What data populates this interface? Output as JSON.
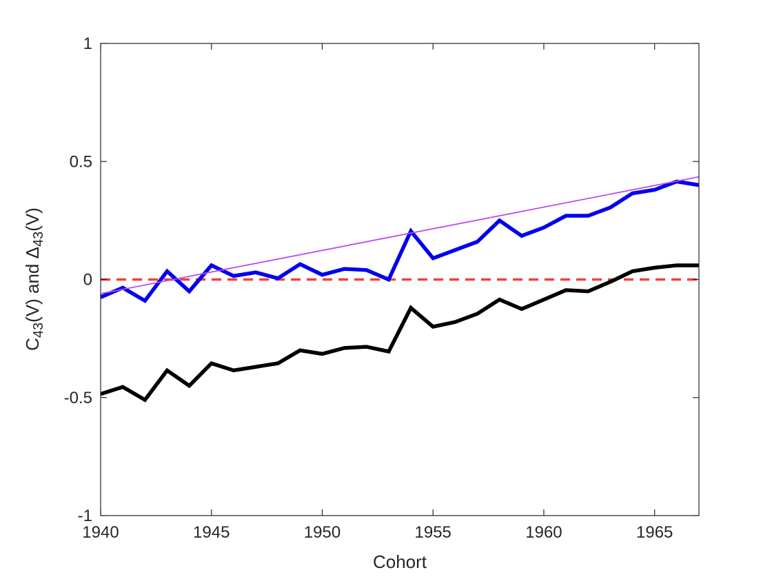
{
  "chart_data": {
    "type": "line",
    "title": "",
    "xlabel": "Cohort",
    "ylabel": {
      "parts": [
        {
          "text": "C",
          "sub": false
        },
        {
          "text": "43",
          "sub": true
        },
        {
          "text": "(V) and ",
          "sub": false
        },
        {
          "text": "Δ",
          "sub": false
        },
        {
          "text": "43",
          "sub": true
        },
        {
          "text": "(V)",
          "sub": false
        }
      ]
    },
    "xlim": [
      1940,
      1967
    ],
    "ylim": [
      -1,
      1
    ],
    "xticks": [
      1940,
      1945,
      1950,
      1955,
      1960,
      1965
    ],
    "xtick_labels": [
      "1940",
      "1945",
      "1950",
      "1955",
      "1960",
      "1965"
    ],
    "yticks": [
      -1,
      -0.5,
      0,
      0.5,
      1
    ],
    "ytick_labels": [
      "-1",
      "-0.5",
      "0",
      "0.5",
      "1"
    ],
    "grid": false,
    "legend": "none",
    "x": [
      1940,
      1941,
      1942,
      1943,
      1944,
      1945,
      1946,
      1947,
      1948,
      1949,
      1950,
      1951,
      1952,
      1953,
      1954,
      1955,
      1956,
      1957,
      1958,
      1959,
      1960,
      1961,
      1962,
      1963,
      1964,
      1965,
      1966,
      1967
    ],
    "series": [
      {
        "color": "#0000ee",
        "style": "solid",
        "weight": "thick",
        "values": [
          -0.075,
          -0.035,
          -0.09,
          0.035,
          -0.05,
          0.06,
          0.015,
          0.03,
          0.005,
          0.065,
          0.02,
          0.045,
          0.04,
          0.0,
          0.205,
          0.09,
          0.125,
          0.16,
          0.25,
          0.185,
          0.22,
          0.27,
          0.27,
          0.305,
          0.365,
          0.38,
          0.415,
          0.4
        ]
      },
      {
        "color": "#000000",
        "style": "solid",
        "weight": "thick",
        "values": [
          -0.485,
          -0.455,
          -0.51,
          -0.385,
          -0.45,
          -0.355,
          -0.385,
          -0.37,
          -0.355,
          -0.3,
          -0.315,
          -0.29,
          -0.285,
          -0.305,
          -0.12,
          -0.2,
          -0.18,
          -0.145,
          -0.085,
          -0.125,
          -0.085,
          -0.045,
          -0.05,
          -0.01,
          0.035,
          0.05,
          0.06,
          0.06
        ]
      },
      {
        "color": "#b84dee",
        "style": "solid",
        "weight": "thin",
        "x": [
          1940,
          1967
        ],
        "values": [
          -0.06,
          0.435
        ]
      },
      {
        "color": "#f0403c",
        "style": "dashed",
        "weight": "medium",
        "x": [
          1940,
          1967
        ],
        "values": [
          0,
          0
        ]
      }
    ]
  }
}
